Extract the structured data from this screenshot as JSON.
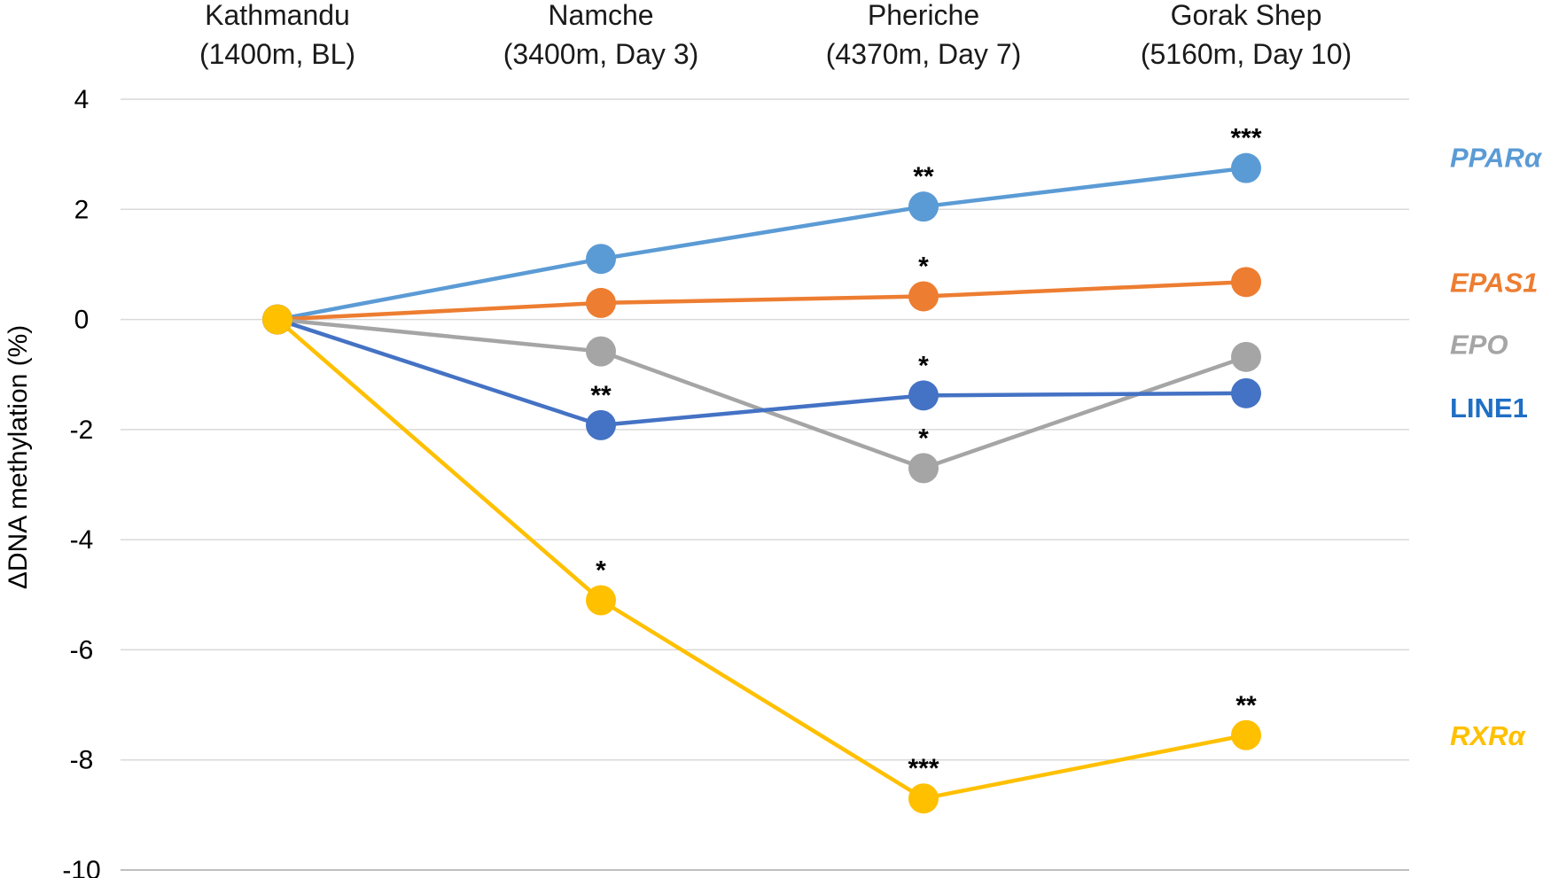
{
  "chart_data": {
    "type": "line",
    "title": "",
    "xlabel": "",
    "ylabel": "ΔDNA methylation (%)",
    "ylim": [
      -10,
      4
    ],
    "yticks": [
      4,
      2,
      0,
      -2,
      -4,
      -6,
      -8,
      -10
    ],
    "yticks_text": [
      "4",
      "2",
      "0",
      "-2",
      "-4",
      "-6",
      "-8",
      "-10"
    ],
    "grid": true,
    "categories": [
      [
        "Kathmandu",
        "(1400m, BL)"
      ],
      [
        "Namche",
        "(3400m, Day 3)"
      ],
      [
        "Pheriche",
        "(4370m, Day 7)"
      ],
      [
        "Gorak Shep",
        "(5160m, Day 10)"
      ]
    ],
    "series": [
      {
        "name": "PPARα",
        "label": "PPARα",
        "italic": true,
        "color": "#5B9BD5",
        "values": [
          0,
          1.1,
          2.05,
          2.75
        ],
        "significance": [
          "",
          "",
          "**",
          "***"
        ]
      },
      {
        "name": "EPAS1",
        "label": "EPAS1",
        "italic": true,
        "color": "#ED7D31",
        "values": [
          0,
          0.3,
          0.42,
          0.68
        ],
        "significance": [
          "",
          "",
          "*",
          ""
        ]
      },
      {
        "name": "EPO",
        "label": "EPO",
        "italic": true,
        "color": "#A5A5A5",
        "values": [
          0,
          -0.58,
          -2.7,
          -0.68
        ],
        "significance": [
          "",
          "",
          "*",
          ""
        ]
      },
      {
        "name": "LINE1",
        "label": "LINE1",
        "italic": false,
        "color": "#4472C4",
        "values": [
          0,
          -1.92,
          -1.38,
          -1.34
        ],
        "significance": [
          "",
          "**",
          "*",
          ""
        ]
      },
      {
        "name": "RXRα",
        "label": "RXRα",
        "italic": true,
        "color": "#FFC000",
        "values": [
          0,
          -5.1,
          -8.7,
          -7.55
        ],
        "significance": [
          "",
          "*",
          "***",
          "**"
        ]
      }
    ],
    "label_colors": {
      "PPARα": "#5B9BD5",
      "EPAS1": "#ED7D31",
      "EPO": "#A5A5A5",
      "LINE1": "#1F6FC5",
      "RXRα": "#FFC000"
    }
  }
}
